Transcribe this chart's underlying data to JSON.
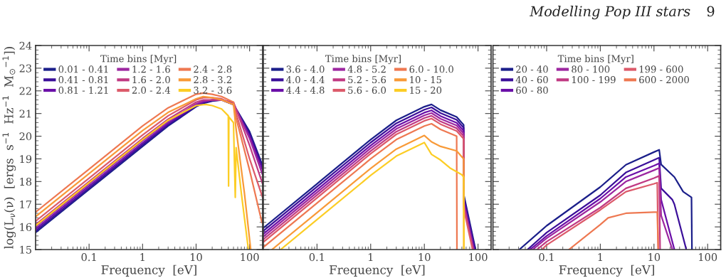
{
  "chart_data": [
    {
      "type": "line",
      "log": "x",
      "xlim": [
        0.01,
        175
      ],
      "ylim": [
        15,
        24
      ],
      "xticks": [
        0.1,
        1,
        10,
        100
      ],
      "yticks": [
        15,
        16,
        17,
        18,
        19,
        20,
        21,
        22,
        23,
        24
      ],
      "xlabel": "Frequency  [eV]",
      "ylabel": "log(L$_{ν}$(ν)  [ergs  s$^{−1}$  Hz$^{−1}$  M$_{⊙}$$^{−1}$])",
      "legend": "top left",
      "legend_title": "Time bins [Myr]",
      "annotations": [
        "Modelling Pop III stars",
        "9"
      ],
      "series": [
        {
          "name": "0.01 - 0.41",
          "color": "#1b1f8a",
          "x": [
            0.01,
            0.1,
            1,
            3,
            10,
            13.6,
            20,
            30,
            50,
            100,
            175
          ],
          "values": [
            15.75,
            17.65,
            19.55,
            20.45,
            21.3,
            21.45,
            21.55,
            21.6,
            21.4,
            20.2,
            18.7
          ]
        },
        {
          "name": "0.41 - 0.81",
          "color": "#3b0f9a",
          "x": [
            0.01,
            0.1,
            1,
            3,
            10,
            13.6,
            20,
            30,
            50,
            100,
            175
          ],
          "values": [
            15.82,
            17.72,
            19.62,
            20.5,
            21.33,
            21.48,
            21.57,
            21.6,
            21.4,
            20.1,
            18.6
          ]
        },
        {
          "name": "0.81 - 1.21",
          "color": "#6a0fa8",
          "x": [
            0.01,
            0.1,
            1,
            3,
            10,
            13.6,
            20,
            30,
            50,
            100,
            175
          ],
          "values": [
            15.9,
            17.8,
            19.7,
            20.57,
            21.37,
            21.5,
            21.6,
            21.6,
            21.4,
            20.0,
            18.5
          ]
        },
        {
          "name": "1.2 - 1.6",
          "color": "#9c27a0",
          "x": [
            0.01,
            0.1,
            1,
            3,
            10,
            13.6,
            20,
            30,
            50,
            100,
            175
          ],
          "values": [
            16.0,
            17.9,
            19.8,
            20.65,
            21.42,
            21.55,
            21.6,
            21.6,
            21.45,
            19.9,
            18.3
          ]
        },
        {
          "name": "1.6 - 2.0",
          "color": "#c03a83",
          "x": [
            0.01,
            0.1,
            1,
            3,
            10,
            13.6,
            20,
            30,
            50,
            100,
            175
          ],
          "values": [
            16.1,
            18.0,
            19.9,
            20.75,
            21.5,
            21.6,
            21.6,
            21.6,
            21.5,
            19.6,
            17.9
          ]
        },
        {
          "name": "2.0 - 2.4",
          "color": "#dc5a6a",
          "x": [
            0.01,
            0.1,
            1,
            3,
            10,
            13.6,
            20,
            30,
            50,
            100,
            175
          ],
          "values": [
            16.25,
            18.15,
            20.05,
            20.9,
            21.6,
            21.7,
            21.7,
            21.65,
            21.4,
            19.0,
            17.3
          ]
        },
        {
          "name": "2.4 - 2.8",
          "color": "#ee7851",
          "x": [
            0.01,
            0.1,
            1,
            3,
            10,
            13.6,
            20,
            30,
            50,
            56,
            100,
            170
          ],
          "values": [
            16.65,
            18.55,
            20.45,
            21.25,
            21.85,
            21.9,
            21.85,
            21.75,
            21.5,
            20.8,
            18.5,
            16.2
          ]
        },
        {
          "name": "2.8 - 3.2",
          "color": "#f89a38",
          "x": [
            0.01,
            0.1,
            1,
            3,
            10,
            13.6,
            20,
            30,
            50,
            56,
            80,
            105
          ],
          "values": [
            16.45,
            18.35,
            20.25,
            21.05,
            21.65,
            21.75,
            21.7,
            21.6,
            21.4,
            20.3,
            17.5,
            15.0
          ]
        },
        {
          "name": "3.2 - 3.6",
          "color": "#fccd25",
          "x": [
            0.01,
            0.1,
            1,
            3,
            10,
            15,
            20,
            30,
            40,
            40.5,
            41,
            50,
            54,
            56,
            70,
            95
          ],
          "values": [
            16.05,
            17.95,
            19.85,
            20.7,
            21.35,
            21.4,
            21.35,
            21.2,
            20.9,
            17.8,
            20.85,
            20.6,
            17.3,
            19.5,
            17.5,
            15.0
          ]
        }
      ]
    },
    {
      "type": "line",
      "log": "x",
      "xlim": [
        0.01,
        175
      ],
      "ylim": [
        15,
        24
      ],
      "xticks": [
        0.1,
        1,
        10,
        100
      ],
      "yticks": [
        15,
        16,
        17,
        18,
        19,
        20,
        21,
        22,
        23,
        24
      ],
      "tick_labels": "x",
      "xlabel": "Frequency  [eV]",
      "legend": "top left",
      "legend_title": "Time bins [Myr]",
      "series": [
        {
          "name": "3.6 - 4.0",
          "color": "#1b1f8a",
          "x": [
            0.01,
            0.1,
            1,
            3,
            10,
            13.6,
            20,
            40,
            54,
            54.5,
            90
          ],
          "values": [
            15.95,
            17.9,
            19.85,
            20.7,
            21.3,
            21.4,
            21.15,
            20.85,
            20.5,
            17.4,
            15.0
          ]
        },
        {
          "name": "4.0 - 4.4",
          "color": "#3b0f9a",
          "x": [
            0.01,
            0.1,
            1,
            3,
            10,
            13.6,
            20,
            40,
            54,
            54.5,
            87.6
          ],
          "values": [
            15.82,
            17.77,
            19.72,
            20.57,
            21.17,
            21.27,
            21.02,
            20.72,
            20.37,
            17.27,
            15.0
          ]
        },
        {
          "name": "4.4 - 4.8",
          "color": "#6a0fa8",
          "x": [
            0.01,
            0.1,
            1,
            3,
            10,
            13.6,
            20,
            40,
            54,
            54.5,
            85.3
          ],
          "values": [
            15.69,
            17.64,
            19.59,
            20.44,
            21.04,
            21.14,
            20.89,
            20.59,
            20.24,
            17.14,
            15.0
          ]
        },
        {
          "name": "4.8 - 5.2",
          "color": "#9c27a0",
          "x": [
            0.01,
            0.1,
            1,
            3,
            10,
            13.6,
            20,
            40,
            54,
            54.5,
            83
          ],
          "values": [
            15.57,
            17.52,
            19.47,
            20.32,
            20.92,
            21.02,
            20.77,
            20.47,
            20.12,
            17.02,
            15.0
          ]
        },
        {
          "name": "5.2 - 5.6",
          "color": "#c03a83",
          "x": [
            0.01,
            0.1,
            1,
            3,
            10,
            13.6,
            20,
            40,
            54,
            54.5,
            81
          ],
          "values": [
            15.45,
            17.4,
            19.35,
            20.2,
            20.8,
            20.9,
            20.65,
            20.35,
            20.0,
            16.9,
            15.0
          ]
        },
        {
          "name": "5.6 - 6.0",
          "color": "#dc5a6a",
          "x": [
            0.01,
            0.1,
            1,
            3,
            10,
            13.6,
            20,
            40,
            54,
            54.5,
            79
          ],
          "values": [
            15.33,
            17.28,
            19.23,
            20.08,
            20.68,
            20.78,
            20.53,
            20.23,
            19.88,
            16.78,
            15.0
          ]
        },
        {
          "name": "6.0 - 10.0",
          "color": "#ee7851",
          "x": [
            0.01,
            0.1,
            1,
            3,
            10,
            13.6,
            20,
            40,
            40.5
          ],
          "values": [
            15.1,
            17.05,
            19.0,
            19.85,
            20.45,
            20.55,
            20.3,
            20.0,
            15.0
          ]
        },
        {
          "name": "10 - 15",
          "color": "#f89a38",
          "x": [
            0.0145,
            0.1,
            1,
            3,
            10,
            13.6,
            20,
            40,
            54,
            54.5
          ],
          "values": [
            15.0,
            16.63,
            18.58,
            19.43,
            20.03,
            19.75,
            19.55,
            19.35,
            19.0,
            15.0
          ]
        },
        {
          "name": "15 - 20",
          "color": "#fccd25",
          "x": [
            0.021,
            0.1,
            1,
            3,
            10,
            13.6,
            20,
            30,
            50,
            54,
            54.5
          ],
          "values": [
            15.0,
            16.32,
            18.27,
            19.12,
            19.72,
            19.2,
            18.95,
            18.6,
            18.3,
            18.2,
            15.0
          ]
        }
      ]
    },
    {
      "type": "line",
      "log": "x",
      "xlim": [
        0.01,
        175
      ],
      "ylim": [
        15,
        24
      ],
      "xticks": [
        0.1,
        1,
        10,
        100
      ],
      "yticks": [
        15,
        16,
        17,
        18,
        19,
        20,
        21,
        22,
        23,
        24
      ],
      "tick_labels": "x",
      "xlabel": "Frequency  [eV]",
      "legend": "top left",
      "legend_title": "Time bins [Myr]",
      "series": [
        {
          "name": "20 - 40",
          "color": "#1b1f8a",
          "x": [
            0.031,
            0.1,
            1,
            3,
            10,
            12.5,
            13.6,
            24,
            35,
            50,
            51
          ],
          "values": [
            15.0,
            16.05,
            17.76,
            18.74,
            19.3,
            19.4,
            18.75,
            18.2,
            17.55,
            17.3,
            15.0
          ]
        },
        {
          "name": "40 - 60",
          "color": "#3b0f9a",
          "x": [
            0.044,
            0.1,
            1,
            3,
            10,
            12.5,
            13.6,
            22,
            24,
            40
          ],
          "values": [
            15.0,
            15.75,
            17.4,
            18.4,
            18.95,
            19.05,
            17.7,
            17.2,
            17.0,
            15.0
          ]
        },
        {
          "name": "60 - 80",
          "color": "#6a0fa8",
          "x": [
            0.049,
            0.1,
            1,
            3,
            10,
            12.5,
            13.6,
            24
          ],
          "values": [
            15.0,
            15.6,
            17.25,
            18.2,
            18.7,
            18.8,
            17.2,
            15.0
          ]
        },
        {
          "name": "80 - 100",
          "color": "#9c27a0",
          "x": [
            0.055,
            0.1,
            1,
            3,
            10,
            12.5,
            13.6,
            22
          ],
          "values": [
            15.0,
            15.5,
            17.1,
            18.0,
            18.5,
            18.6,
            16.5,
            15.0
          ]
        },
        {
          "name": "100 - 199",
          "color": "#c03a83",
          "x": [
            0.066,
            0.1,
            1,
            3,
            10,
            12.5,
            13
          ],
          "values": [
            15.0,
            15.35,
            16.85,
            17.7,
            18.15,
            18.25,
            15.0
          ]
        },
        {
          "name": "199 - 600",
          "color": "#dc5a6a",
          "x": [
            0.081,
            0.1,
            1,
            3,
            10,
            11.5,
            12
          ],
          "values": [
            15.0,
            15.2,
            16.75,
            17.55,
            17.9,
            17.95,
            15.0
          ]
        },
        {
          "name": "600 - 2000",
          "color": "#ee7851",
          "x": [
            0.26,
            1,
            1.4,
            3,
            10,
            11.5,
            12
          ],
          "values": [
            15.0,
            16.1,
            16.4,
            16.6,
            16.65,
            16.65,
            15.0
          ]
        }
      ]
    }
  ]
}
